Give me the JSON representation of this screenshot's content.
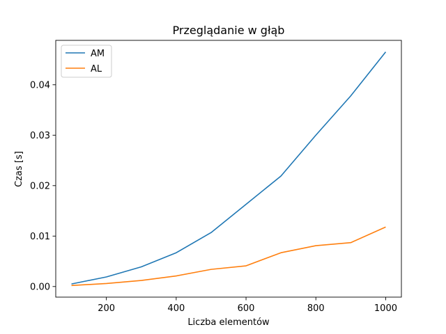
{
  "chart_data": {
    "type": "line",
    "title": "Przeglądanie w głąb",
    "xlabel": "Liczba elementów",
    "ylabel": "Czas [s]",
    "x": [
      100,
      200,
      300,
      400,
      500,
      600,
      700,
      800,
      900,
      1000
    ],
    "series": [
      {
        "name": "AM",
        "color": "#1f77b4",
        "values": [
          0.0005,
          0.0019,
          0.0039,
          0.0067,
          0.0107,
          0.0163,
          0.0219,
          0.03,
          0.0378,
          0.0465
        ]
      },
      {
        "name": "AL",
        "color": "#ff7f0e",
        "values": [
          0.0002,
          0.0006,
          0.0012,
          0.0021,
          0.0034,
          0.0041,
          0.0067,
          0.0081,
          0.0087,
          0.0118
        ]
      }
    ],
    "xlim": [
      55,
      1045
    ],
    "ylim": [
      -0.0021,
      0.0488
    ],
    "xticks": [
      "200",
      "400",
      "600",
      "800",
      "1000"
    ],
    "yticks": [
      "0.00",
      "0.01",
      "0.02",
      "0.03",
      "0.04"
    ],
    "grid": false,
    "legend": "upper left"
  }
}
